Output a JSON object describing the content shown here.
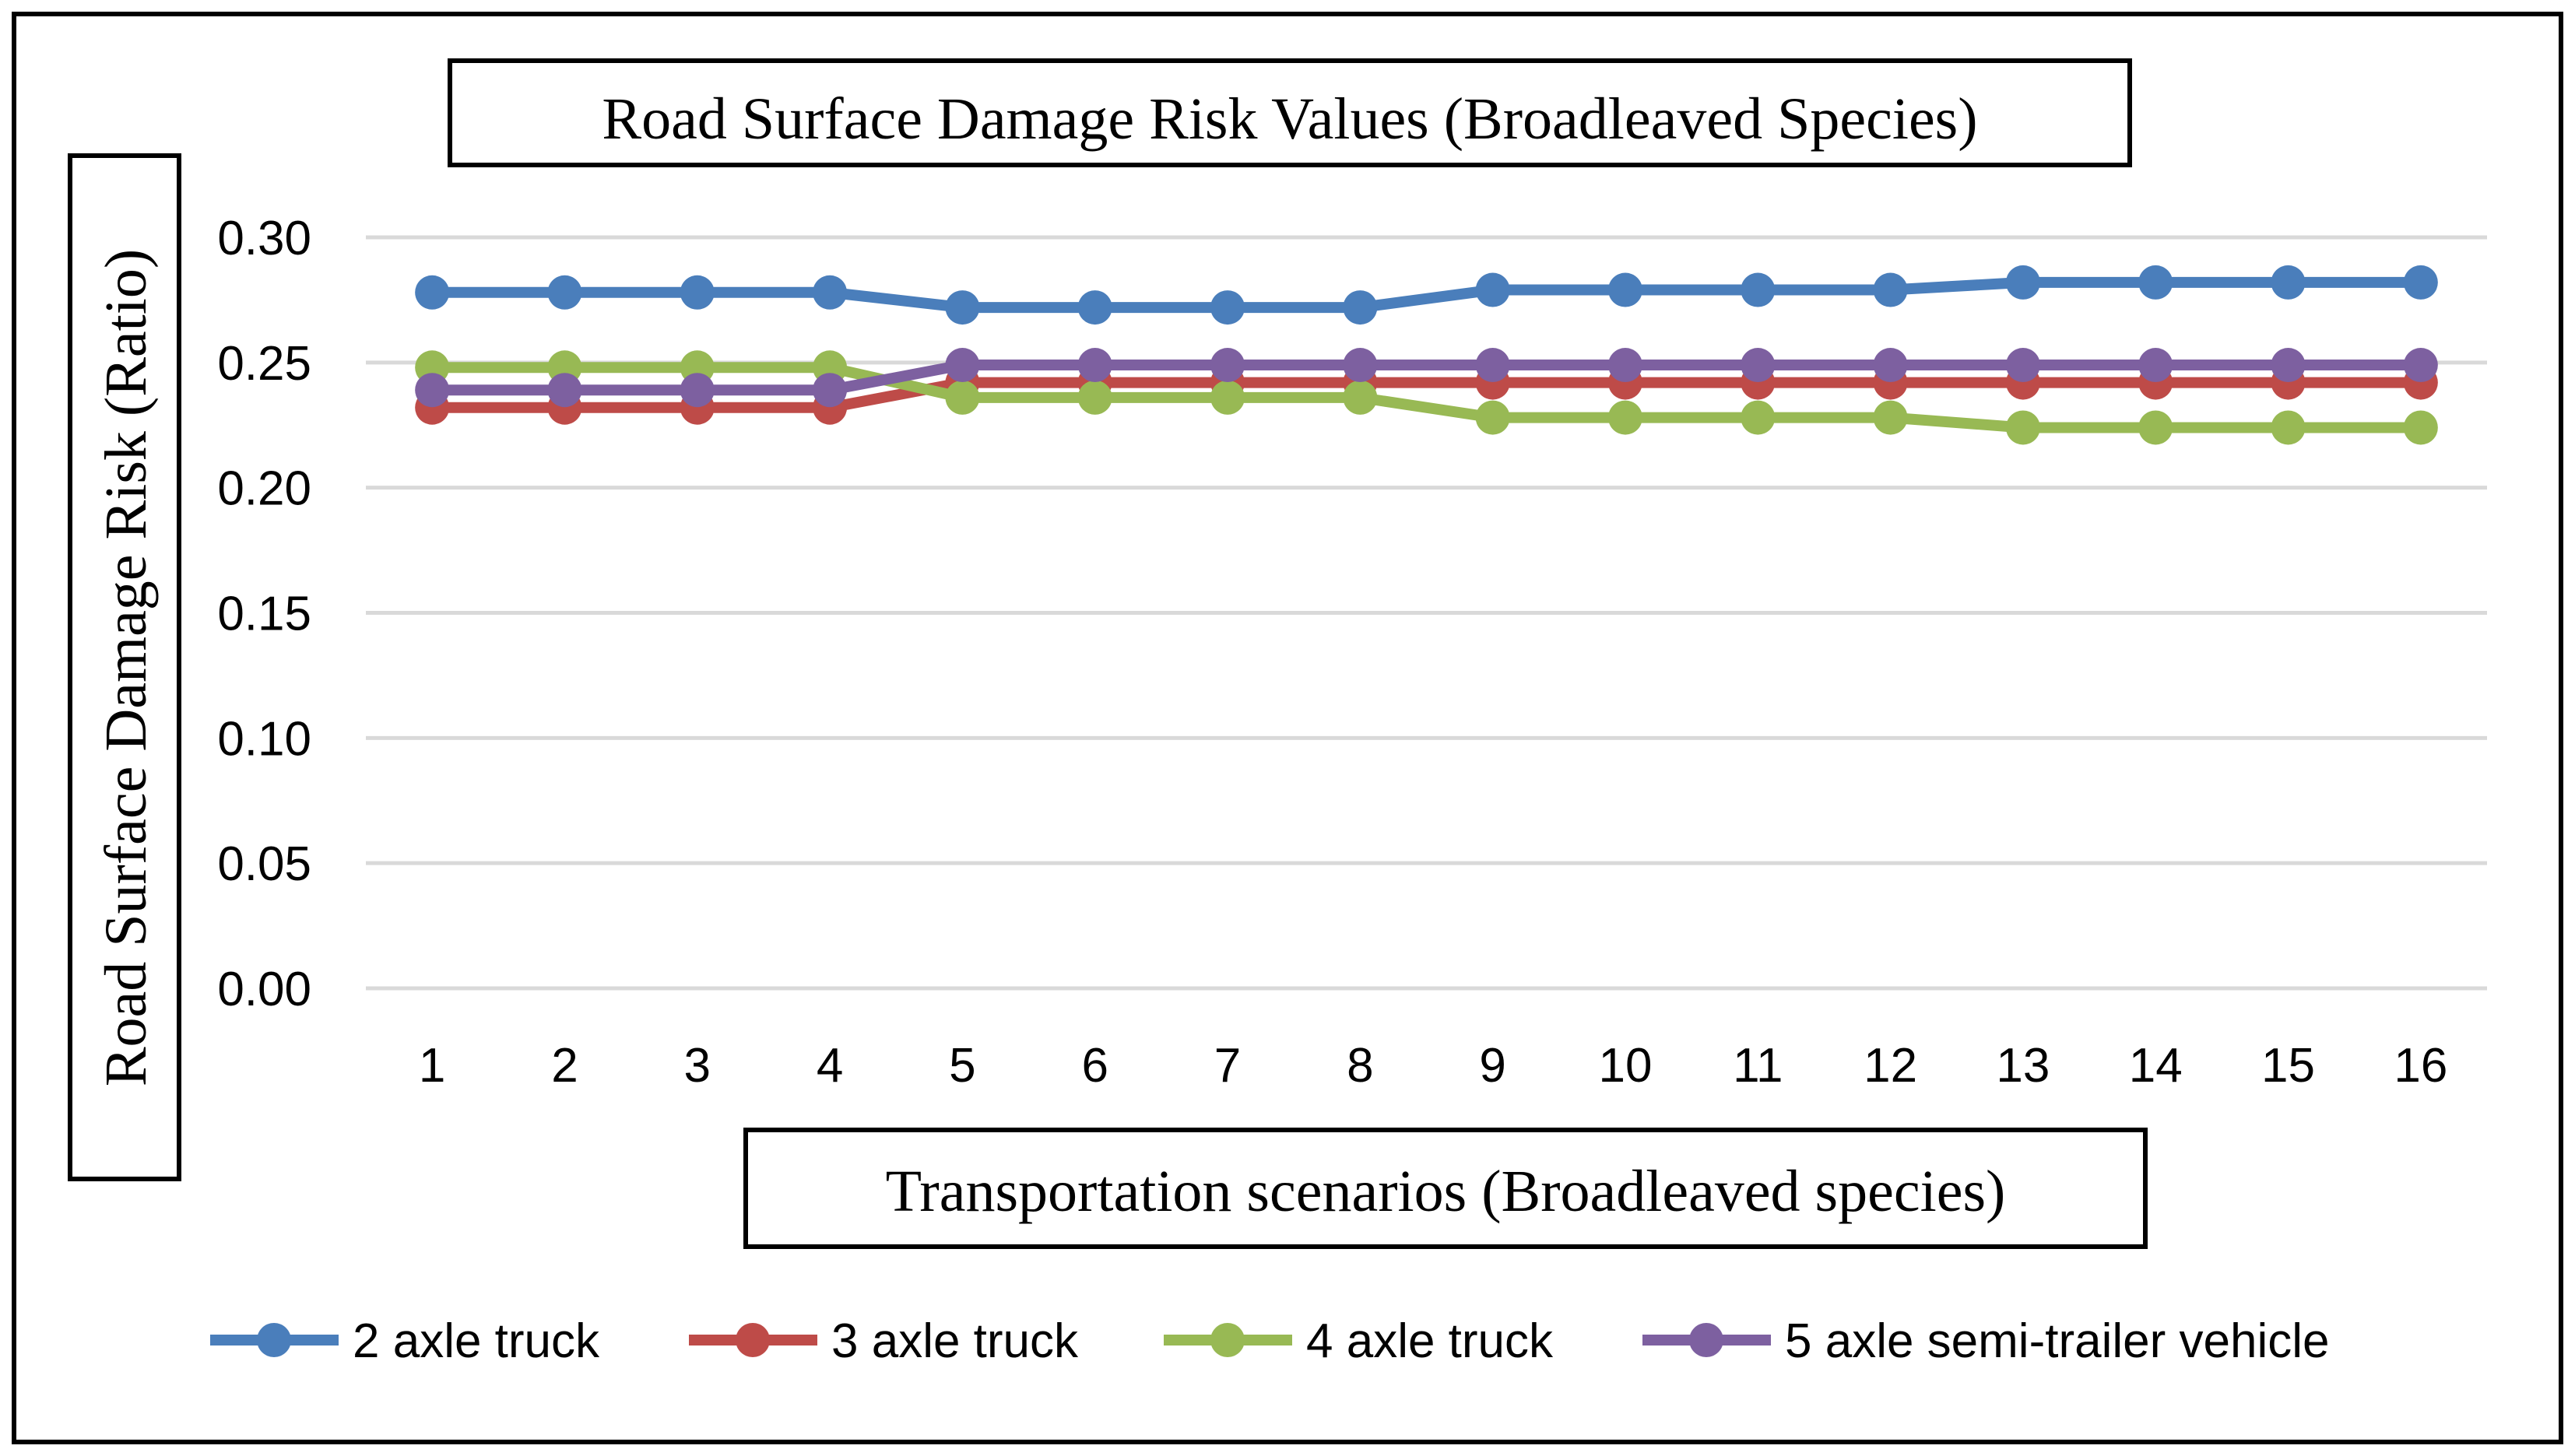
{
  "chart_data": {
    "type": "line",
    "title": "Road Surface Damage Risk Values (Broadleaved Species)",
    "xlabel": "Transportation scenarios (Broadleaved species)",
    "ylabel": "Road Surface Damage Risk (Ratio)",
    "categories": [
      "1",
      "2",
      "3",
      "4",
      "5",
      "6",
      "7",
      "8",
      "9",
      "10",
      "11",
      "12",
      "13",
      "14",
      "15",
      "16"
    ],
    "ylim": [
      0,
      0.3
    ],
    "yticks": [
      "0.00",
      "0.05",
      "0.10",
      "0.15",
      "0.20",
      "0.25",
      "0.30"
    ],
    "grid": true,
    "legend_position": "bottom",
    "series": [
      {
        "name": "2 axle truck",
        "color": "#4a7ebb",
        "values": [
          0.278,
          0.278,
          0.278,
          0.278,
          0.272,
          0.272,
          0.272,
          0.272,
          0.279,
          0.279,
          0.279,
          0.279,
          0.282,
          0.282,
          0.282,
          0.282
        ]
      },
      {
        "name": "3 axle truck",
        "color": "#be4b48",
        "values": [
          0.232,
          0.232,
          0.232,
          0.232,
          0.242,
          0.242,
          0.242,
          0.242,
          0.242,
          0.242,
          0.242,
          0.242,
          0.242,
          0.242,
          0.242,
          0.242
        ]
      },
      {
        "name": "4 axle truck",
        "color": "#98b954",
        "values": [
          0.248,
          0.248,
          0.248,
          0.248,
          0.236,
          0.236,
          0.236,
          0.236,
          0.228,
          0.228,
          0.228,
          0.228,
          0.224,
          0.224,
          0.224,
          0.224
        ]
      },
      {
        "name": "5 axle semi-trailer vehicle",
        "color": "#7d60a0",
        "values": [
          0.239,
          0.239,
          0.239,
          0.239,
          0.249,
          0.249,
          0.249,
          0.249,
          0.249,
          0.249,
          0.249,
          0.249,
          0.249,
          0.249,
          0.249,
          0.249
        ]
      }
    ]
  }
}
